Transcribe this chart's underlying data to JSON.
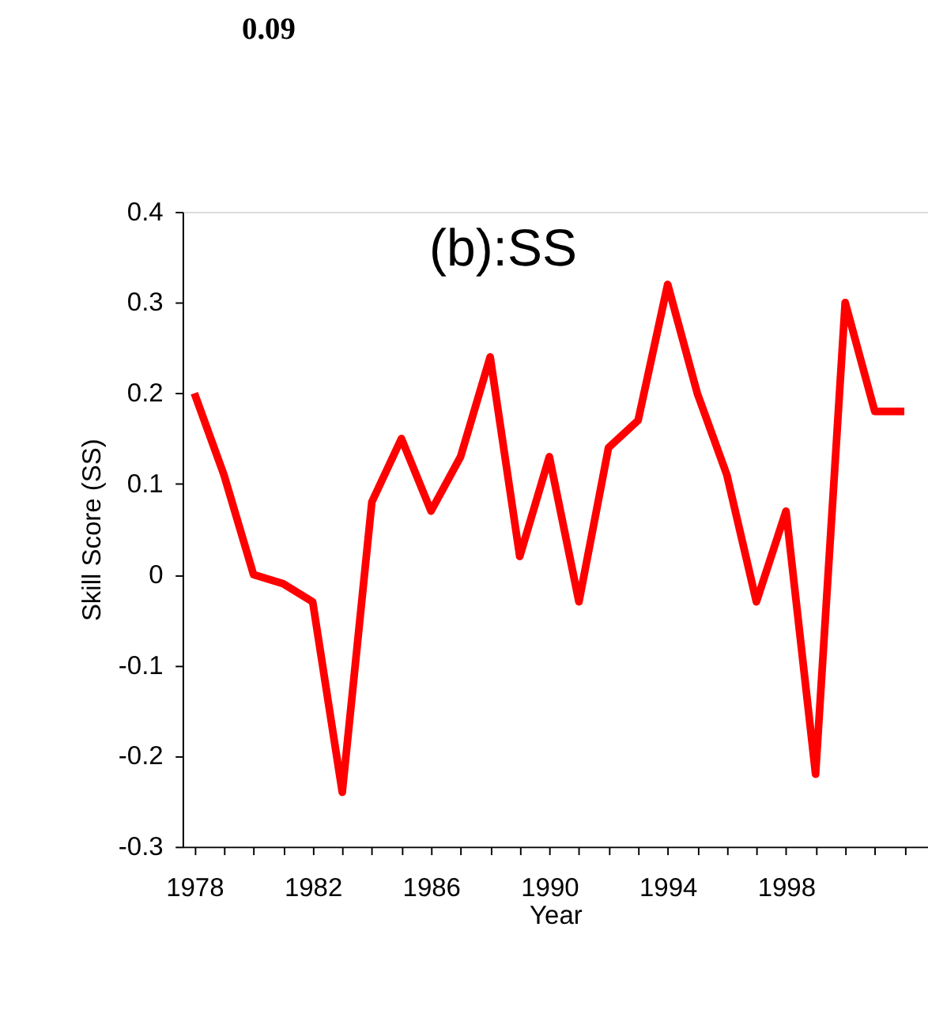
{
  "chart_data": {
    "type": "line",
    "title": "0.09",
    "xlabel": "Year",
    "ylabel": "Skill Score (SS)",
    "annotations": [
      "(b):SS"
    ],
    "x": [
      1978,
      1979,
      1980,
      1981,
      1982,
      1983,
      1984,
      1985,
      1986,
      1987,
      1988,
      1989,
      1990,
      1991,
      1992,
      1993,
      1994,
      1995,
      1996,
      1997,
      1998,
      1999,
      2000,
      2001,
      2002
    ],
    "series": [
      {
        "color": "#ff0000",
        "values": [
          0.2,
          0.11,
          0.0,
          -0.01,
          -0.03,
          -0.24,
          0.08,
          0.15,
          0.07,
          0.13,
          0.24,
          0.02,
          0.13,
          -0.03,
          0.14,
          0.17,
          0.32,
          0.2,
          0.11,
          -0.03,
          0.07,
          -0.22,
          0.3,
          0.18,
          0.18
        ]
      }
    ],
    "xlim": [
      1977.6,
      2002.8
    ],
    "xticks": [
      1978,
      {
        "value": 1979,
        "label": null
      },
      {
        "value": 1980,
        "label": null
      },
      {
        "value": 1981,
        "label": null
      },
      1982,
      {
        "value": 1983,
        "label": null
      },
      {
        "value": 1984,
        "label": null
      },
      {
        "value": 1985,
        "label": null
      },
      1986,
      {
        "value": 1987,
        "label": null
      },
      {
        "value": 1988,
        "label": null
      },
      {
        "value": 1989,
        "label": null
      },
      1990,
      {
        "value": 1991,
        "label": null
      },
      {
        "value": 1992,
        "label": null
      },
      {
        "value": 1993,
        "label": null
      },
      1994,
      {
        "value": 1995,
        "label": null
      },
      {
        "value": 1996,
        "label": null
      },
      {
        "value": 1997,
        "label": null
      },
      1998,
      {
        "value": 1999,
        "label": null
      },
      {
        "value": 2000,
        "label": null
      },
      {
        "value": 2001,
        "label": null
      },
      {
        "value": 2002,
        "label": null
      }
    ],
    "ylim": [
      -0.3,
      0.4
    ],
    "yticks": [
      -0.3,
      -0.2,
      -0.1,
      0,
      0.1,
      0.2,
      0.3,
      0.4
    ],
    "grid": false,
    "marker": "none",
    "line_style": "solid"
  }
}
